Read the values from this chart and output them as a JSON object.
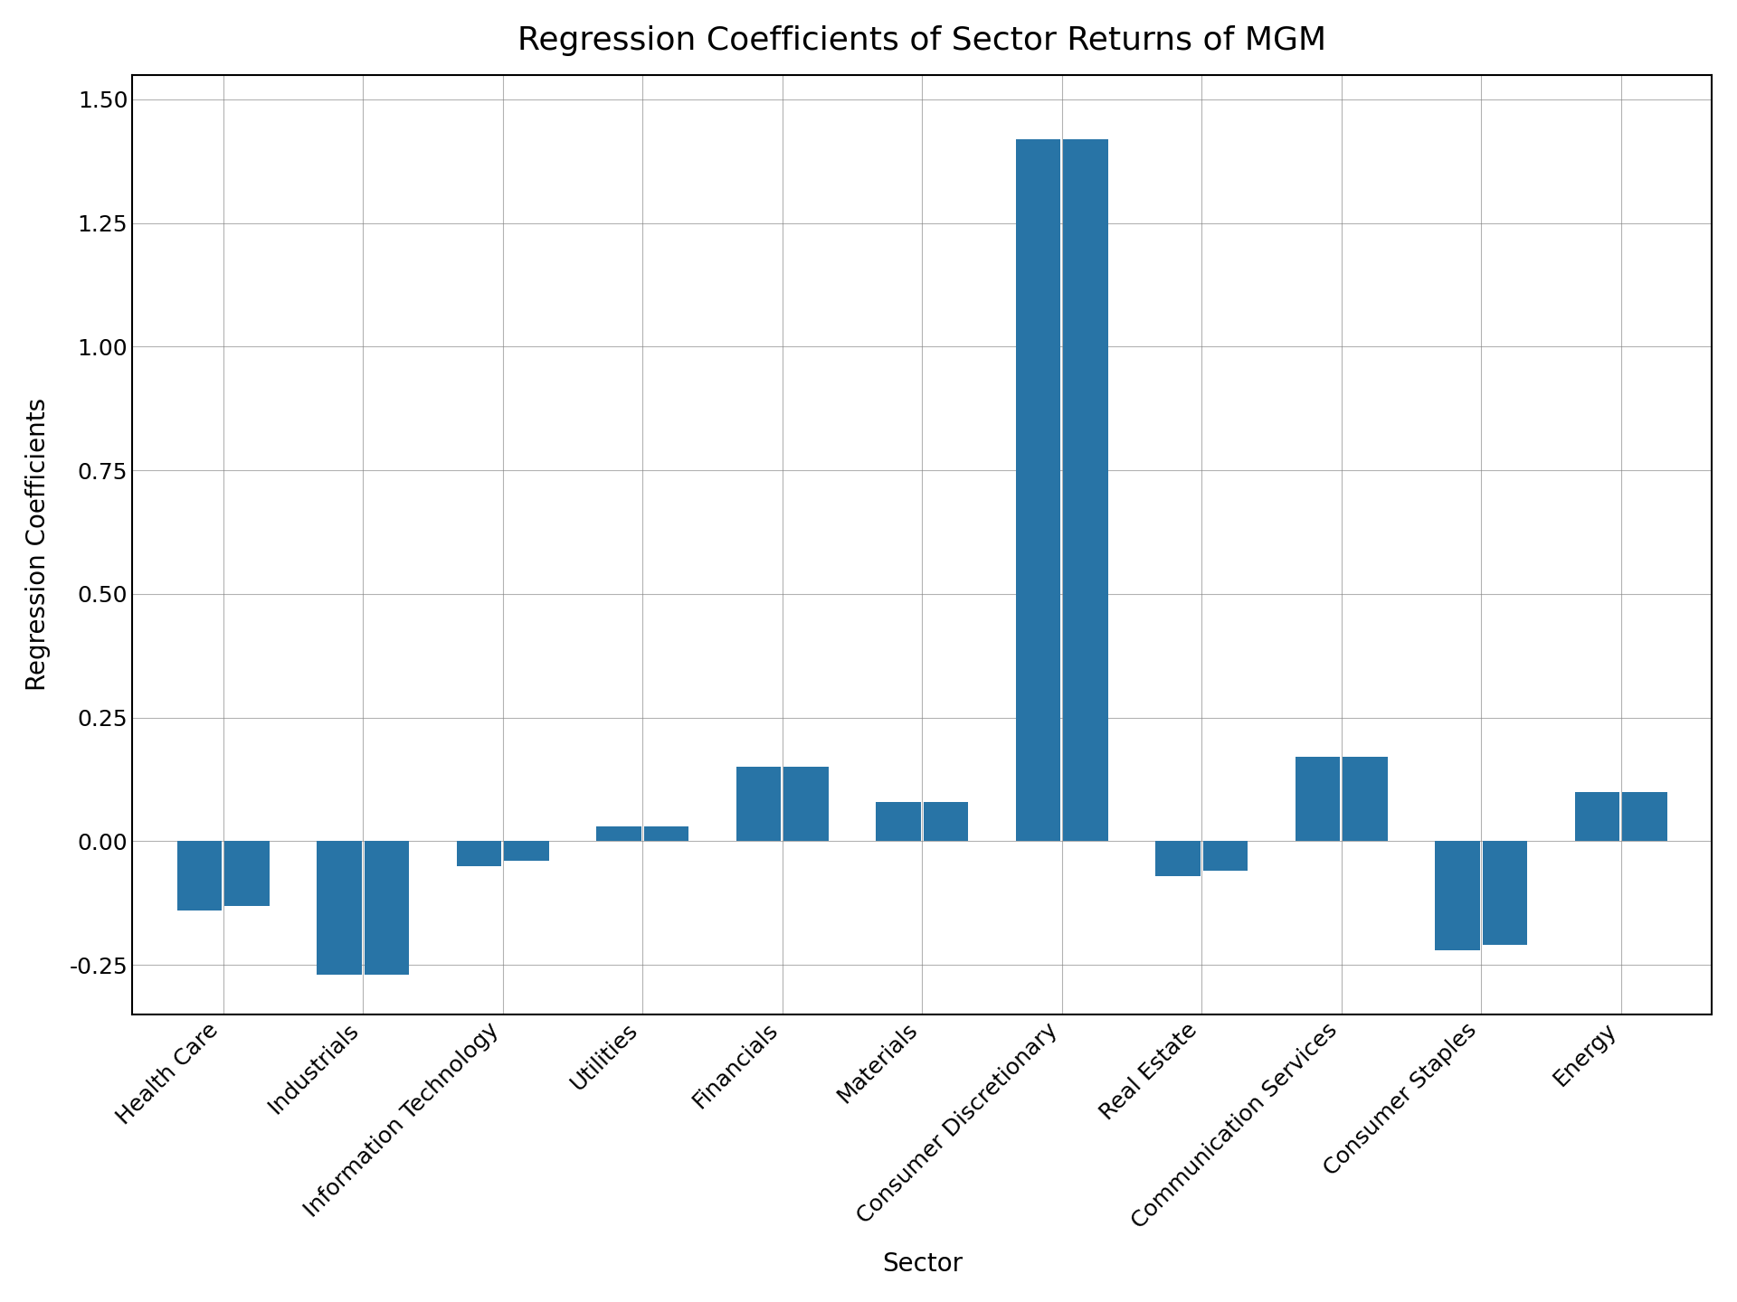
{
  "title": "Regression Coefficients of Sector Returns of MGM",
  "xlabel": "Sector",
  "ylabel": "Regression Coefficients",
  "categories": [
    "Health Care",
    "Industrials",
    "Information Technology",
    "Utilities",
    "Financials",
    "Materials",
    "Consumer Discretionary",
    "Real Estate",
    "Communication Services",
    "Consumer Staples",
    "Energy"
  ],
  "values1": [
    -0.14,
    -0.27,
    -0.05,
    0.03,
    0.15,
    0.08,
    1.42,
    -0.07,
    0.17,
    -0.22,
    0.1
  ],
  "values2": [
    -0.13,
    -0.27,
    -0.04,
    0.03,
    0.15,
    0.08,
    1.42,
    -0.06,
    0.17,
    -0.21,
    0.1
  ],
  "bar_color": "#2874a6",
  "ylim": [
    -0.35,
    1.55
  ],
  "yticks": [
    -0.25,
    0.0,
    0.25,
    0.5,
    0.75,
    1.0,
    1.25,
    1.5
  ],
  "title_fontsize": 26,
  "label_fontsize": 20,
  "tick_fontsize": 18,
  "figsize": [
    19.2,
    14.4
  ],
  "dpi": 100
}
